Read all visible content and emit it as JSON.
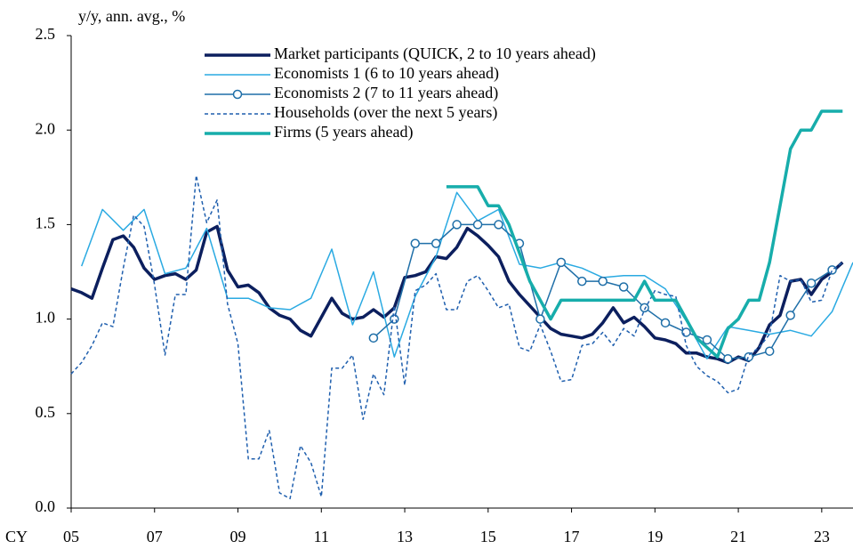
{
  "chart_data": {
    "type": "line",
    "y_label": "y/y, ann. avg., %",
    "x_label": "CY",
    "xlim": [
      2005,
      2023.75
    ],
    "xticks": [
      {
        "value": 2005,
        "label": "05"
      },
      {
        "value": 2007,
        "label": "07"
      },
      {
        "value": 2009,
        "label": "09"
      },
      {
        "value": 2011,
        "label": "11"
      },
      {
        "value": 2013,
        "label": "13"
      },
      {
        "value": 2015,
        "label": "15"
      },
      {
        "value": 2017,
        "label": "17"
      },
      {
        "value": 2019,
        "label": "19"
      },
      {
        "value": 2021,
        "label": "21"
      },
      {
        "value": 2023,
        "label": "23"
      }
    ],
    "ylim": [
      0,
      2.5
    ],
    "yticks": [
      {
        "value": 0,
        "label": "0.0"
      },
      {
        "value": 0.5,
        "label": "0.5"
      },
      {
        "value": 1,
        "label": "1.0"
      },
      {
        "value": 1.5,
        "label": "1.5"
      },
      {
        "value": 2,
        "label": "2.0"
      },
      {
        "value": 2.5,
        "label": "2.5"
      }
    ],
    "grid": false,
    "legend": "upper center",
    "series": [
      {
        "name": "Market participants (QUICK, 2 to 10 years ahead)",
        "color": "#0c1f5e",
        "line": "thick",
        "x": [
          2005,
          2005.25,
          2005.5,
          2005.75,
          2006,
          2006.25,
          2006.5,
          2006.75,
          2007,
          2007.25,
          2007.5,
          2007.75,
          2008,
          2008.25,
          2008.5,
          2008.75,
          2009,
          2009.25,
          2009.5,
          2009.75,
          2010,
          2010.25,
          2010.5,
          2010.75,
          2011,
          2011.25,
          2011.5,
          2011.75,
          2012,
          2012.25,
          2012.5,
          2012.75,
          2013,
          2013.25,
          2013.5,
          2013.75,
          2014,
          2014.25,
          2014.5,
          2014.75,
          2015,
          2015.25,
          2015.5,
          2015.75,
          2016,
          2016.25,
          2016.5,
          2016.75,
          2017,
          2017.25,
          2017.5,
          2017.75,
          2018,
          2018.25,
          2018.5,
          2018.75,
          2019,
          2019.25,
          2019.5,
          2019.75,
          2020,
          2020.25,
          2020.5,
          2020.75,
          2021,
          2021.25,
          2021.5,
          2021.75,
          2022,
          2022.25,
          2022.5,
          2022.75,
          2023,
          2023.25,
          2023.5
        ],
        "values": [
          1.16,
          1.14,
          1.11,
          1.27,
          1.42,
          1.44,
          1.38,
          1.27,
          1.21,
          1.23,
          1.24,
          1.21,
          1.26,
          1.46,
          1.49,
          1.26,
          1.17,
          1.18,
          1.14,
          1.06,
          1.02,
          1.0,
          0.94,
          0.91,
          1.01,
          1.11,
          1.03,
          1.0,
          1.01,
          1.05,
          1.01,
          1.06,
          1.22,
          1.23,
          1.25,
          1.33,
          1.32,
          1.38,
          1.48,
          1.44,
          1.39,
          1.33,
          1.2,
          1.13,
          1.07,
          1.01,
          0.95,
          0.92,
          0.91,
          0.9,
          0.92,
          0.98,
          1.06,
          0.98,
          1.01,
          0.96,
          0.9,
          0.89,
          0.87,
          0.82,
          0.82,
          0.8,
          0.79,
          0.77,
          0.8,
          0.78,
          0.85,
          0.97,
          1.02,
          1.2,
          1.21,
          1.13,
          1.21,
          1.25,
          1.3
        ]
      },
      {
        "name": "Economists 1 (6 to 10 years ahead)",
        "color": "#2aaae2",
        "line": "thin",
        "x": [
          2005.25,
          2005.75,
          2006.25,
          2006.75,
          2007.25,
          2007.75,
          2008.25,
          2008.75,
          2009.25,
          2009.75,
          2010.25,
          2010.75,
          2011.25,
          2011.75,
          2012.25,
          2012.75,
          2013.25,
          2013.75,
          2014.25,
          2014.75,
          2015.25,
          2015.75,
          2016.25,
          2016.75,
          2017.25,
          2017.75,
          2018.25,
          2018.75,
          2019.25,
          2019.75,
          2020.25,
          2020.75,
          2021.25,
          2021.75,
          2022.25,
          2022.75,
          2023.25,
          2023.75
        ],
        "values": [
          1.28,
          1.58,
          1.47,
          1.58,
          1.24,
          1.27,
          1.48,
          1.11,
          1.11,
          1.06,
          1.05,
          1.11,
          1.37,
          0.97,
          1.25,
          0.8,
          1.12,
          1.33,
          1.67,
          1.52,
          1.58,
          1.29,
          1.27,
          1.3,
          1.27,
          1.22,
          1.23,
          1.23,
          1.16,
          0.99,
          0.79,
          0.96,
          0.94,
          0.92,
          0.94,
          0.91,
          1.04,
          1.3
        ]
      },
      {
        "name": "Economists 2 (7 to 11 years ahead)",
        "color": "#1f6fa8",
        "line": "thin",
        "marker": "circle",
        "x": [
          2012.25,
          2012.75,
          2013.25,
          2013.75,
          2014.25,
          2014.75,
          2015.25,
          2015.75,
          2016.25,
          2016.75,
          2017.25,
          2017.75,
          2018.25,
          2018.75,
          2019.25,
          2019.75,
          2020.25,
          2020.75,
          2021.25,
          2021.75,
          2022.25,
          2022.75,
          2023.25
        ],
        "values": [
          0.9,
          1.0,
          1.4,
          1.4,
          1.5,
          1.5,
          1.5,
          1.4,
          1.0,
          1.3,
          1.2,
          1.2,
          1.17,
          1.06,
          0.98,
          0.93,
          0.89,
          0.79,
          0.8,
          0.83,
          1.02,
          1.19,
          1.26
        ]
      },
      {
        "name": "Households (over the next 5 years)",
        "color": "#1f5fae",
        "line": "dashed",
        "x": [
          2005,
          2005.25,
          2005.5,
          2005.75,
          2006,
          2006.25,
          2006.5,
          2006.75,
          2007,
          2007.25,
          2007.5,
          2007.75,
          2008,
          2008.25,
          2008.5,
          2008.75,
          2009,
          2009.25,
          2009.5,
          2009.75,
          2010,
          2010.25,
          2010.5,
          2010.75,
          2011,
          2011.25,
          2011.5,
          2011.75,
          2012,
          2012.25,
          2012.5,
          2012.75,
          2013,
          2013.25,
          2013.5,
          2013.75,
          2014,
          2014.25,
          2014.5,
          2014.75,
          2015,
          2015.25,
          2015.5,
          2015.75,
          2016,
          2016.25,
          2016.5,
          2016.75,
          2017,
          2017.25,
          2017.5,
          2017.75,
          2018,
          2018.25,
          2018.5,
          2018.75,
          2019,
          2019.25,
          2019.5,
          2019.75,
          2020,
          2020.25,
          2020.5,
          2020.75,
          2021,
          2021.25,
          2021.5,
          2021.75,
          2022,
          2022.25,
          2022.5,
          2022.75,
          2023,
          2023.25,
          2023.5
        ],
        "values": [
          0.71,
          0.77,
          0.86,
          0.98,
          0.96,
          1.27,
          1.55,
          1.49,
          1.18,
          0.81,
          1.13,
          1.13,
          1.76,
          1.51,
          1.63,
          1.08,
          0.87,
          0.26,
          0.26,
          0.41,
          0.08,
          0.05,
          0.33,
          0.24,
          0.06,
          0.74,
          0.74,
          0.81,
          0.47,
          0.71,
          0.6,
          1.07,
          0.65,
          1.15,
          1.18,
          1.24,
          1.05,
          1.05,
          1.2,
          1.23,
          1.15,
          1.06,
          1.08,
          0.85,
          0.83,
          0.97,
          0.83,
          0.67,
          0.68,
          0.86,
          0.87,
          0.93,
          0.86,
          0.95,
          0.91,
          1.05,
          1.15,
          1.13,
          1.12,
          0.86,
          0.75,
          0.7,
          0.67,
          0.61,
          0.63,
          0.81,
          0.85,
          0.92,
          1.23,
          1.2,
          1.21,
          1.09,
          1.1,
          1.26,
          1.3
        ]
      },
      {
        "name": "Firms (5 years ahead)",
        "color": "#17adab",
        "line": "thick",
        "x": [
          2014,
          2014.25,
          2014.5,
          2014.75,
          2015,
          2015.25,
          2015.5,
          2015.75,
          2016,
          2016.25,
          2016.5,
          2016.75,
          2017,
          2017.25,
          2017.5,
          2017.75,
          2018,
          2018.25,
          2018.5,
          2018.75,
          2019,
          2019.25,
          2019.5,
          2019.75,
          2020,
          2020.25,
          2020.5,
          2020.75,
          2021,
          2021.25,
          2021.5,
          2021.75,
          2022,
          2022.25,
          2022.5,
          2022.75,
          2023,
          2023.25,
          2023.5
        ],
        "values": [
          1.7,
          1.7,
          1.7,
          1.7,
          1.6,
          1.6,
          1.5,
          1.35,
          1.2,
          1.1,
          1.0,
          1.1,
          1.1,
          1.1,
          1.1,
          1.1,
          1.1,
          1.1,
          1.1,
          1.2,
          1.1,
          1.1,
          1.1,
          1.0,
          0.9,
          0.85,
          0.8,
          0.95,
          1.0,
          1.1,
          1.1,
          1.3,
          1.6,
          1.9,
          2.0,
          2.0,
          2.1,
          2.1,
          2.1
        ]
      }
    ]
  }
}
